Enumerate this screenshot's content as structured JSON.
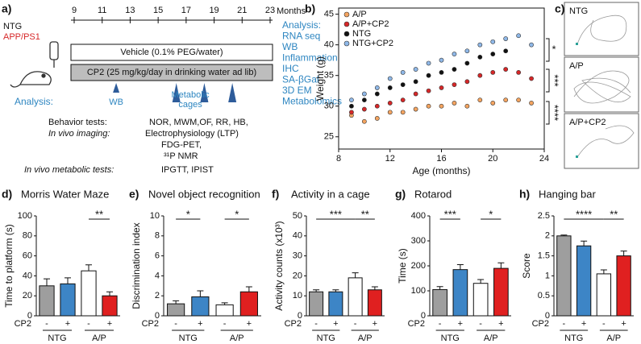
{
  "timeline": {
    "label": "a)",
    "strains": [
      "NTG",
      "APP/PS1"
    ],
    "months": [
      9,
      11,
      13,
      15,
      17,
      19,
      21,
      23
    ],
    "months_label": "Months",
    "vehicle": "Vehicle (0.1% PEG/water)",
    "treatment": "CP2 (25 mg/kg/day in drinking water ad lib)",
    "analysis_label": "Analysis:",
    "wb": "WB",
    "wb_time": 12,
    "metabolic_label": [
      "Metabolic",
      "cages"
    ],
    "metabolic_times": [
      16.3,
      18.3,
      20.3
    ],
    "analysis_list": [
      "Analysis:",
      "RNA seq",
      "WB",
      "Inflammation",
      "IHC",
      "SA-βGal",
      "3D EM",
      "Metabolomics"
    ],
    "behavior_label": "Behavior tests:",
    "behavior": "NOR, MWM,OF, RR, HB,",
    "imaging_label": "In vivo imaging:",
    "imaging": [
      "Electrophysiology (LTP)",
      "FDG-PET,",
      "³¹P NMR"
    ],
    "metabolic_tests_label": "In vivo metabolic tests:",
    "metabolic_tests": "IPGTT, IPIST"
  },
  "tracks": {
    "label": "c)",
    "panels": [
      "NTG",
      "A/P",
      "A/P+CP2"
    ]
  },
  "chart_data": [
    {
      "type": "scatter",
      "label": "b)",
      "xlabel": "Age (months)",
      "ylabel": "Weight (g)",
      "xlim": [
        8,
        24
      ],
      "xticks": [
        8,
        12,
        16,
        20,
        24
      ],
      "ylim": [
        23,
        46
      ],
      "yticks": [
        25,
        30,
        35,
        40,
        45
      ],
      "x": [
        9,
        10,
        11,
        12,
        13,
        14,
        15,
        16,
        17,
        18,
        19,
        20,
        21,
        22,
        23
      ],
      "series": [
        {
          "name": "A/P",
          "color": "#f4a460",
          "values": [
            28.5,
            27.5,
            28,
            29,
            29,
            29.5,
            30,
            30,
            30.5,
            30,
            31,
            30.5,
            31,
            31,
            30.5
          ]
        },
        {
          "name": "A/P+CP2",
          "color": "#d62728",
          "values": [
            29,
            29.5,
            30,
            30.5,
            31,
            32,
            32.5,
            33,
            33.5,
            34,
            35,
            35.5,
            36,
            35.5,
            34.5
          ]
        },
        {
          "name": "NTG",
          "color": "#111111",
          "values": [
            30,
            31,
            32,
            33,
            33.5,
            34,
            35,
            35.5,
            36,
            37,
            38,
            38.5,
            39,
            null,
            null
          ]
        },
        {
          "name": "NTG+CP2",
          "color": "#8fb8e8",
          "values": [
            31,
            32,
            33,
            34.5,
            35.5,
            36,
            37,
            37.5,
            38.5,
            39,
            40,
            40.5,
            41,
            41.5,
            40
          ]
        }
      ],
      "annotations": [
        "*",
        "***",
        "****"
      ]
    },
    {
      "type": "bar",
      "label": "d)",
      "title": "Morris Water Maze",
      "ylabel": "Time to platform (s)",
      "xlabel": "CP2",
      "categories": [
        "-",
        "+",
        "-",
        "+"
      ],
      "groups": [
        "NTG",
        "A/P"
      ],
      "values": [
        30,
        32,
        45,
        20
      ],
      "errors": [
        7,
        6,
        6,
        4
      ],
      "colors": [
        "#9e9e9e",
        "#3d85c6",
        "#ffffff",
        "#e02020"
      ],
      "ylim": [
        0,
        100
      ],
      "yticks": [
        0,
        20,
        40,
        60,
        80,
        100
      ],
      "annotations": [
        {
          "text": "**",
          "between": [
            2,
            3
          ]
        }
      ]
    },
    {
      "type": "bar",
      "label": "e)",
      "title": "Novel object recognition",
      "ylabel": "Discrimination index",
      "xlabel": "CP2",
      "categories": [
        "-",
        "+",
        "-",
        "+"
      ],
      "groups": [
        "NTG",
        "A/P"
      ],
      "values": [
        1.2,
        1.9,
        1.1,
        2.4
      ],
      "errors": [
        0.3,
        0.6,
        0.2,
        0.5
      ],
      "colors": [
        "#9e9e9e",
        "#3d85c6",
        "#ffffff",
        "#e02020"
      ],
      "ylim": [
        0,
        10
      ],
      "yticks": [
        0,
        2,
        4,
        6,
        8,
        10
      ],
      "annotations": [
        {
          "text": "*",
          "between": [
            0,
            1
          ]
        },
        {
          "text": "*",
          "between": [
            2,
            3
          ]
        }
      ]
    },
    {
      "type": "bar",
      "label": "f)",
      "title": "Activity in a cage",
      "ylabel": "Activity counts (x10³)",
      "xlabel": "CP2",
      "categories": [
        "-",
        "+",
        "-",
        "+"
      ],
      "groups": [
        "NTG",
        "A/P"
      ],
      "values": [
        12,
        12,
        19,
        13
      ],
      "errors": [
        1,
        1,
        2.5,
        1.5
      ],
      "colors": [
        "#9e9e9e",
        "#3d85c6",
        "#ffffff",
        "#e02020"
      ],
      "ylim": [
        0,
        50
      ],
      "yticks": [
        0,
        10,
        20,
        30,
        40,
        50
      ],
      "annotations": [
        {
          "text": "***",
          "between": [
            0,
            2
          ]
        },
        {
          "text": "**",
          "between": [
            2,
            3
          ]
        }
      ]
    },
    {
      "type": "bar",
      "label": "g)",
      "title": "Rotarod",
      "ylabel": "Time (s)",
      "xlabel": "CP2",
      "categories": [
        "-",
        "+",
        "-",
        "+"
      ],
      "groups": [
        "NTG",
        "A/P"
      ],
      "values": [
        105,
        185,
        130,
        190
      ],
      "errors": [
        12,
        20,
        15,
        22
      ],
      "colors": [
        "#9e9e9e",
        "#3d85c6",
        "#ffffff",
        "#e02020"
      ],
      "ylim": [
        0,
        400
      ],
      "yticks": [
        0,
        100,
        200,
        300,
        400
      ],
      "annotations": [
        {
          "text": "***",
          "between": [
            0,
            1
          ]
        },
        {
          "text": "*",
          "between": [
            2,
            3
          ]
        }
      ]
    },
    {
      "type": "bar",
      "label": "h)",
      "title": "Hanging bar",
      "ylabel": "Score",
      "xlabel": "CP2",
      "categories": [
        "-",
        "+",
        "-",
        "+"
      ],
      "groups": [
        "NTG",
        "A/P"
      ],
      "values": [
        2,
        1.75,
        1.05,
        1.5
      ],
      "errors": [
        0.02,
        0.12,
        0.1,
        0.12
      ],
      "colors": [
        "#9e9e9e",
        "#3d85c6",
        "#ffffff",
        "#e02020"
      ],
      "ylim": [
        0,
        2.5
      ],
      "yticks": [
        0,
        0.5,
        1,
        1.5,
        2,
        2.5
      ],
      "annotations": [
        {
          "text": "****",
          "between": [
            0,
            2
          ]
        },
        {
          "text": "**",
          "between": [
            2,
            3
          ]
        }
      ]
    }
  ]
}
